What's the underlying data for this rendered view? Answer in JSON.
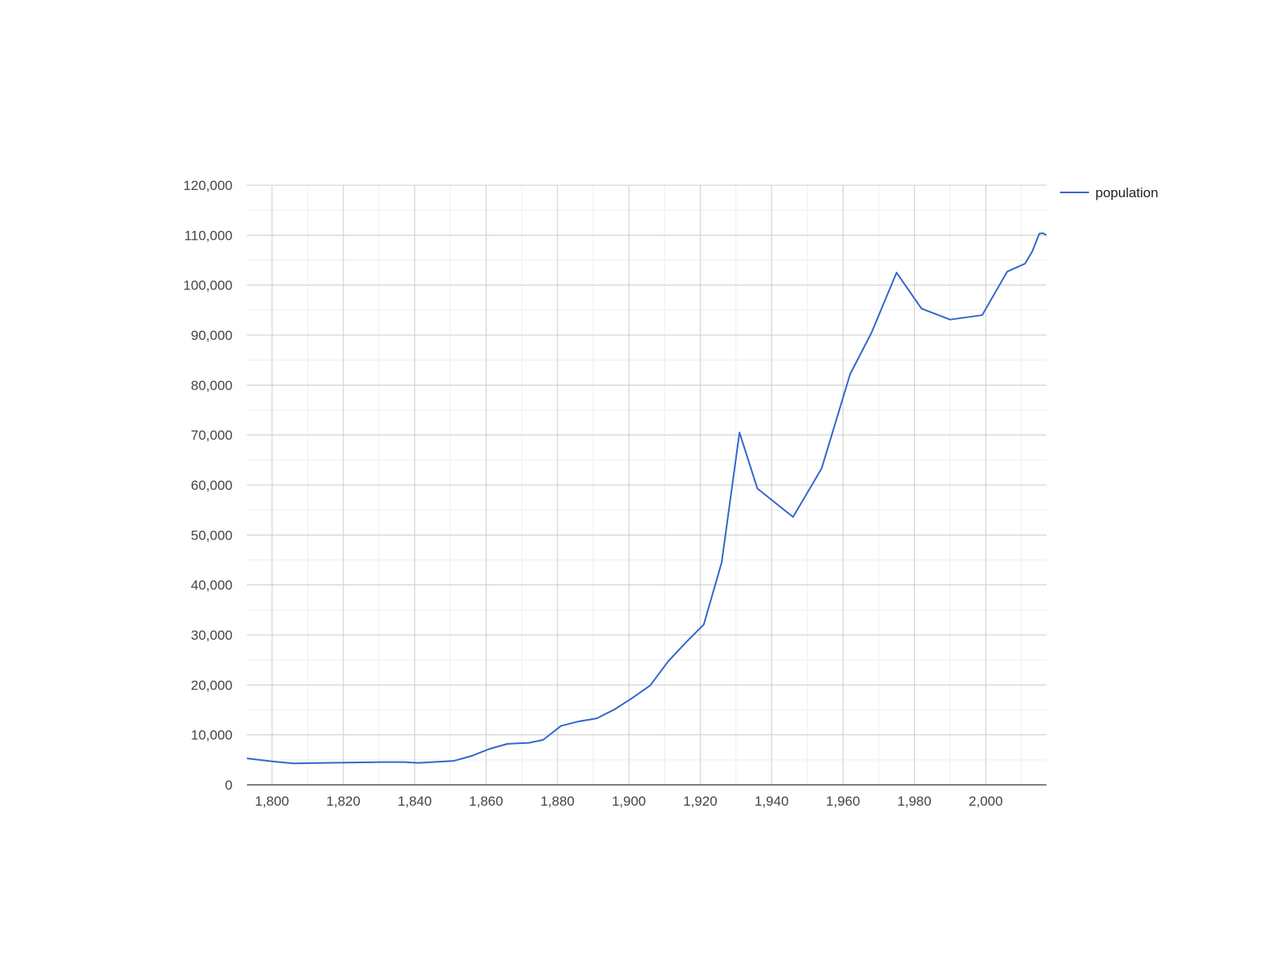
{
  "chart_data": {
    "type": "line",
    "title": "",
    "xlabel": "",
    "ylabel": "",
    "xlim": [
      1793,
      2017
    ],
    "ylim": [
      0,
      120000
    ],
    "x_ticks": [
      1800,
      1820,
      1840,
      1860,
      1880,
      1900,
      1920,
      1940,
      1960,
      1980,
      2000
    ],
    "x_tick_labels": [
      "1,800",
      "1,820",
      "1,840",
      "1,860",
      "1,880",
      "1,900",
      "1,920",
      "1,940",
      "1,960",
      "1,980",
      "2,000"
    ],
    "y_ticks": [
      0,
      10000,
      20000,
      30000,
      40000,
      50000,
      60000,
      70000,
      80000,
      90000,
      100000,
      110000,
      120000
    ],
    "y_tick_labels": [
      "0",
      "10,000",
      "20,000",
      "30,000",
      "40,000",
      "50,000",
      "60,000",
      "70,000",
      "80,000",
      "90,000",
      "100,000",
      "110,000",
      "120,000"
    ],
    "grid": true,
    "legend_position": "right",
    "series": [
      {
        "name": "population",
        "color": "#3366cc",
        "points": [
          [
            1793,
            5300
          ],
          [
            1800,
            4700
          ],
          [
            1806,
            4300
          ],
          [
            1815,
            4400
          ],
          [
            1825,
            4500
          ],
          [
            1831,
            4550
          ],
          [
            1837,
            4550
          ],
          [
            1841,
            4400
          ],
          [
            1851,
            4800
          ],
          [
            1856,
            5800
          ],
          [
            1861,
            7200
          ],
          [
            1866,
            8200
          ],
          [
            1872,
            8400
          ],
          [
            1876,
            9000
          ],
          [
            1881,
            11800
          ],
          [
            1886,
            12700
          ],
          [
            1891,
            13300
          ],
          [
            1896,
            15100
          ],
          [
            1901,
            17400
          ],
          [
            1906,
            19900
          ],
          [
            1911,
            24700
          ],
          [
            1916,
            28500
          ],
          [
            1921,
            32100
          ],
          [
            1926,
            44500
          ],
          [
            1931,
            70500
          ],
          [
            1936,
            59300
          ],
          [
            1946,
            53600
          ],
          [
            1954,
            63300
          ],
          [
            1962,
            82200
          ],
          [
            1968,
            90500
          ],
          [
            1975,
            102500
          ],
          [
            1982,
            95300
          ],
          [
            1990,
            93100
          ],
          [
            1999,
            94000
          ],
          [
            2006,
            102700
          ],
          [
            2011,
            104300
          ],
          [
            2013,
            106700
          ],
          [
            2015,
            110300
          ],
          [
            2016,
            110400
          ],
          [
            2017,
            110000
          ]
        ]
      }
    ]
  }
}
